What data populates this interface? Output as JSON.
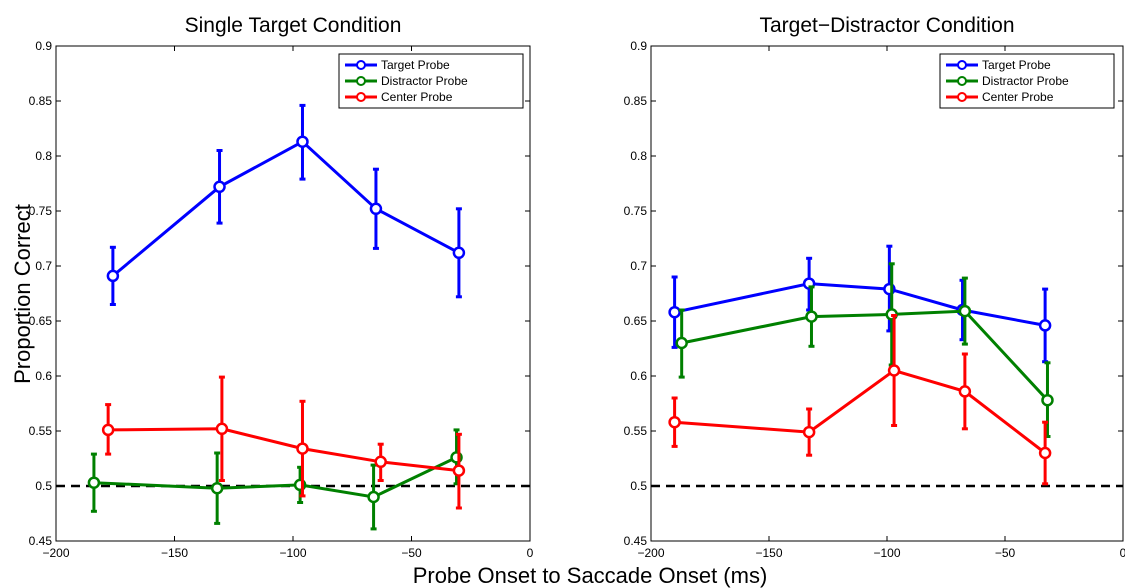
{
  "figure": {
    "xlabel": "Probe Onset to Saccade Onset (ms)",
    "ylabel": "Proportion Correct"
  },
  "chart_data": [
    {
      "type": "line",
      "title": "Single Target Condition",
      "xlim": [
        -200,
        0
      ],
      "ylim": [
        0.45,
        0.9
      ],
      "xticks": [
        "−200",
        "−150",
        "−100",
        "−50",
        "0"
      ],
      "yticks": [
        "0.45",
        "0.5",
        "0.55",
        "0.6",
        "0.65",
        "0.7",
        "0.75",
        "0.8",
        "0.85",
        "0.9"
      ],
      "reference_line": 0.5,
      "legend_position": "top-right",
      "series": [
        {
          "name": "Target Probe",
          "color": "#0000ff",
          "x": [
            -176,
            -131,
            -96,
            -65,
            -30
          ],
          "y": [
            0.691,
            0.772,
            0.813,
            0.752,
            0.712
          ],
          "err_low": [
            0.665,
            0.739,
            0.779,
            0.716,
            0.672
          ],
          "err_high": [
            0.717,
            0.805,
            0.846,
            0.788,
            0.752
          ]
        },
        {
          "name": "Distractor Probe",
          "color": "#008000",
          "x": [
            -184,
            -132,
            -97,
            -66,
            -31
          ],
          "y": [
            0.503,
            0.498,
            0.501,
            0.49,
            0.526
          ],
          "err_low": [
            0.477,
            0.466,
            0.485,
            0.461,
            0.502
          ],
          "err_high": [
            0.529,
            0.53,
            0.517,
            0.519,
            0.551
          ]
        },
        {
          "name": "Center Probe",
          "color": "#ff0000",
          "x": [
            -178,
            -130,
            -96,
            -63,
            -30
          ],
          "y": [
            0.551,
            0.552,
            0.534,
            0.522,
            0.514
          ],
          "err_low": [
            0.529,
            0.505,
            0.491,
            0.505,
            0.48
          ],
          "err_high": [
            0.574,
            0.599,
            0.577,
            0.538,
            0.547
          ]
        }
      ]
    },
    {
      "type": "line",
      "title": "Target−Distractor Condition",
      "xlim": [
        -200,
        0
      ],
      "ylim": [
        0.45,
        0.9
      ],
      "xticks": [
        "−200",
        "−150",
        "−100",
        "−50",
        "0"
      ],
      "yticks": [
        "0.45",
        "0.5",
        "0.55",
        "0.6",
        "0.65",
        "0.7",
        "0.75",
        "0.8",
        "0.85",
        "0.9"
      ],
      "reference_line": 0.5,
      "legend_position": "top-right",
      "series": [
        {
          "name": "Target Probe",
          "color": "#0000ff",
          "x": [
            -190,
            -133,
            -99,
            -68,
            -33
          ],
          "y": [
            0.658,
            0.684,
            0.679,
            0.66,
            0.646
          ],
          "err_low": [
            0.626,
            0.66,
            0.641,
            0.633,
            0.613
          ],
          "err_high": [
            0.69,
            0.707,
            0.718,
            0.687,
            0.679
          ]
        },
        {
          "name": "Distractor Probe",
          "color": "#008000",
          "x": [
            -187,
            -132,
            -98,
            -67,
            -32
          ],
          "y": [
            0.63,
            0.654,
            0.656,
            0.659,
            0.578
          ],
          "err_low": [
            0.599,
            0.627,
            0.61,
            0.629,
            0.545
          ],
          "err_high": [
            0.66,
            0.681,
            0.702,
            0.689,
            0.612
          ]
        },
        {
          "name": "Center Probe",
          "color": "#ff0000",
          "x": [
            -190,
            -133,
            -97,
            -67,
            -33
          ],
          "y": [
            0.558,
            0.549,
            0.605,
            0.586,
            0.53
          ],
          "err_low": [
            0.536,
            0.528,
            0.555,
            0.552,
            0.502
          ],
          "err_high": [
            0.58,
            0.57,
            0.655,
            0.62,
            0.558
          ]
        }
      ]
    }
  ]
}
